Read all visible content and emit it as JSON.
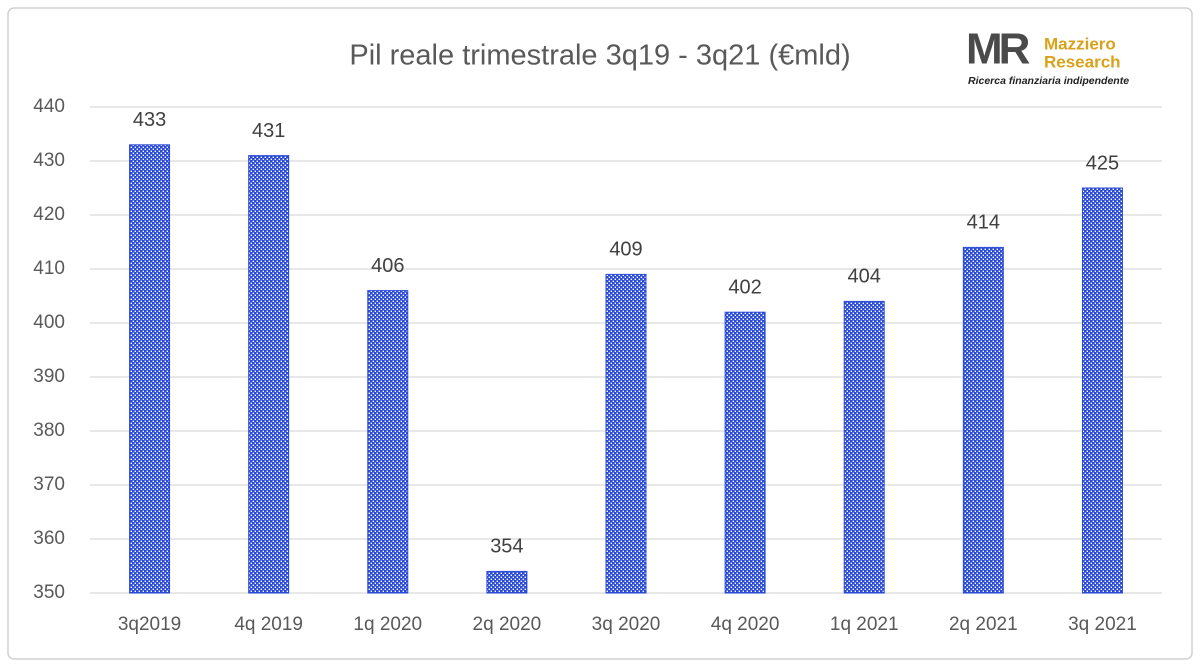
{
  "chart_data": {
    "type": "bar",
    "title": "Pil reale trimestrale 3q19 - 3q21 (€mld)",
    "categories": [
      "3q2019",
      "4q 2019",
      "1q 2020",
      "2q 2020",
      "3q 2020",
      "4q 2020",
      "1q 2021",
      "2q 2021",
      "3q 2021"
    ],
    "values": [
      433,
      431,
      406,
      354,
      409,
      402,
      404,
      414,
      425
    ],
    "color": "#2a4bd7",
    "ylim": [
      350,
      440
    ],
    "yticks": [
      350,
      360,
      370,
      380,
      390,
      400,
      410,
      420,
      430,
      440
    ],
    "grid": true
  },
  "logo": {
    "mark": "MR",
    "name_line1": "Mazziero",
    "name_line2": "Research",
    "tagline": "Ricerca finanziaria indipendente"
  }
}
